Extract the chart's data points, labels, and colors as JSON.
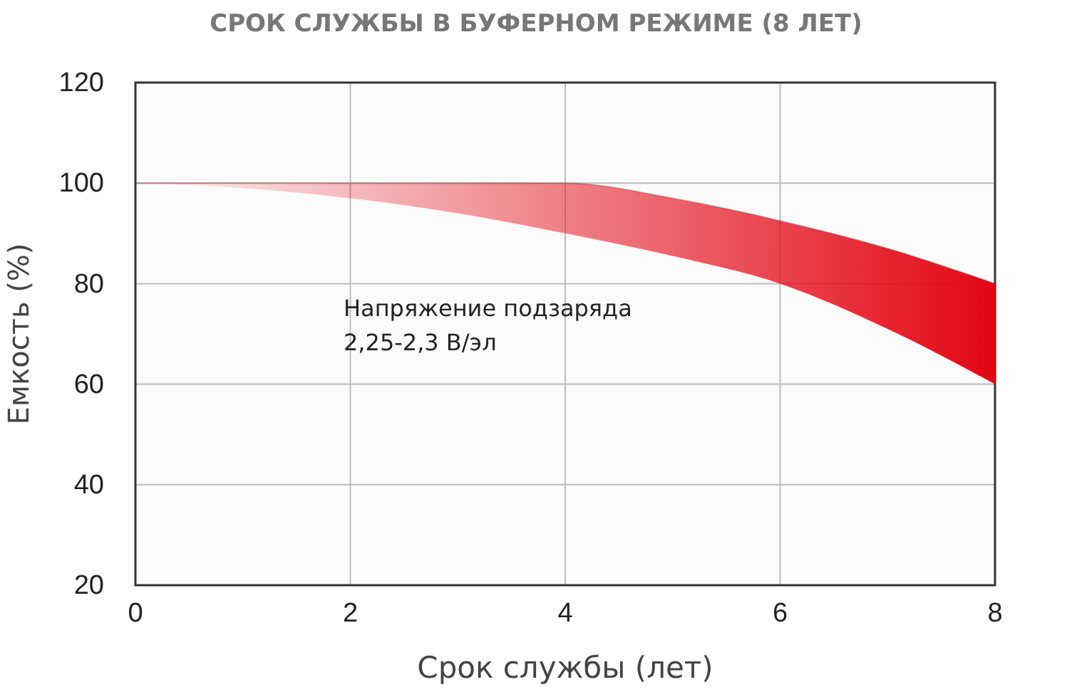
{
  "chart_data": {
    "type": "line",
    "title": "СРОК СЛУЖБЫ В БУФЕРНОМ РЕЖИМЕ (8 ЛЕТ)",
    "xlabel": "Срок службы (лет)",
    "ylabel": "Емкость (%)",
    "x": [
      0,
      1,
      2,
      3,
      4,
      5,
      6,
      7,
      8
    ],
    "series": [
      {
        "color": "#e30613",
        "values": [
          100,
          100,
          100,
          100,
          100,
          97,
          92.5,
          87,
          80
        ],
        "upper": [
          100,
          100,
          100,
          100,
          100,
          97,
          92.5,
          87,
          80
        ],
        "lower": [
          100,
          99,
          97,
          94,
          90,
          85.5,
          80,
          71,
          60
        ]
      }
    ],
    "xlim": [
      0,
      8
    ],
    "xticks": [
      0,
      2,
      4,
      6,
      8
    ],
    "ylim": [
      20,
      120
    ],
    "yticks": [
      20,
      40,
      60,
      80,
      100,
      120
    ],
    "grid": true,
    "annotations": [
      "Напряжение подзаряда\n2,25-2,3 В/эл"
    ]
  }
}
